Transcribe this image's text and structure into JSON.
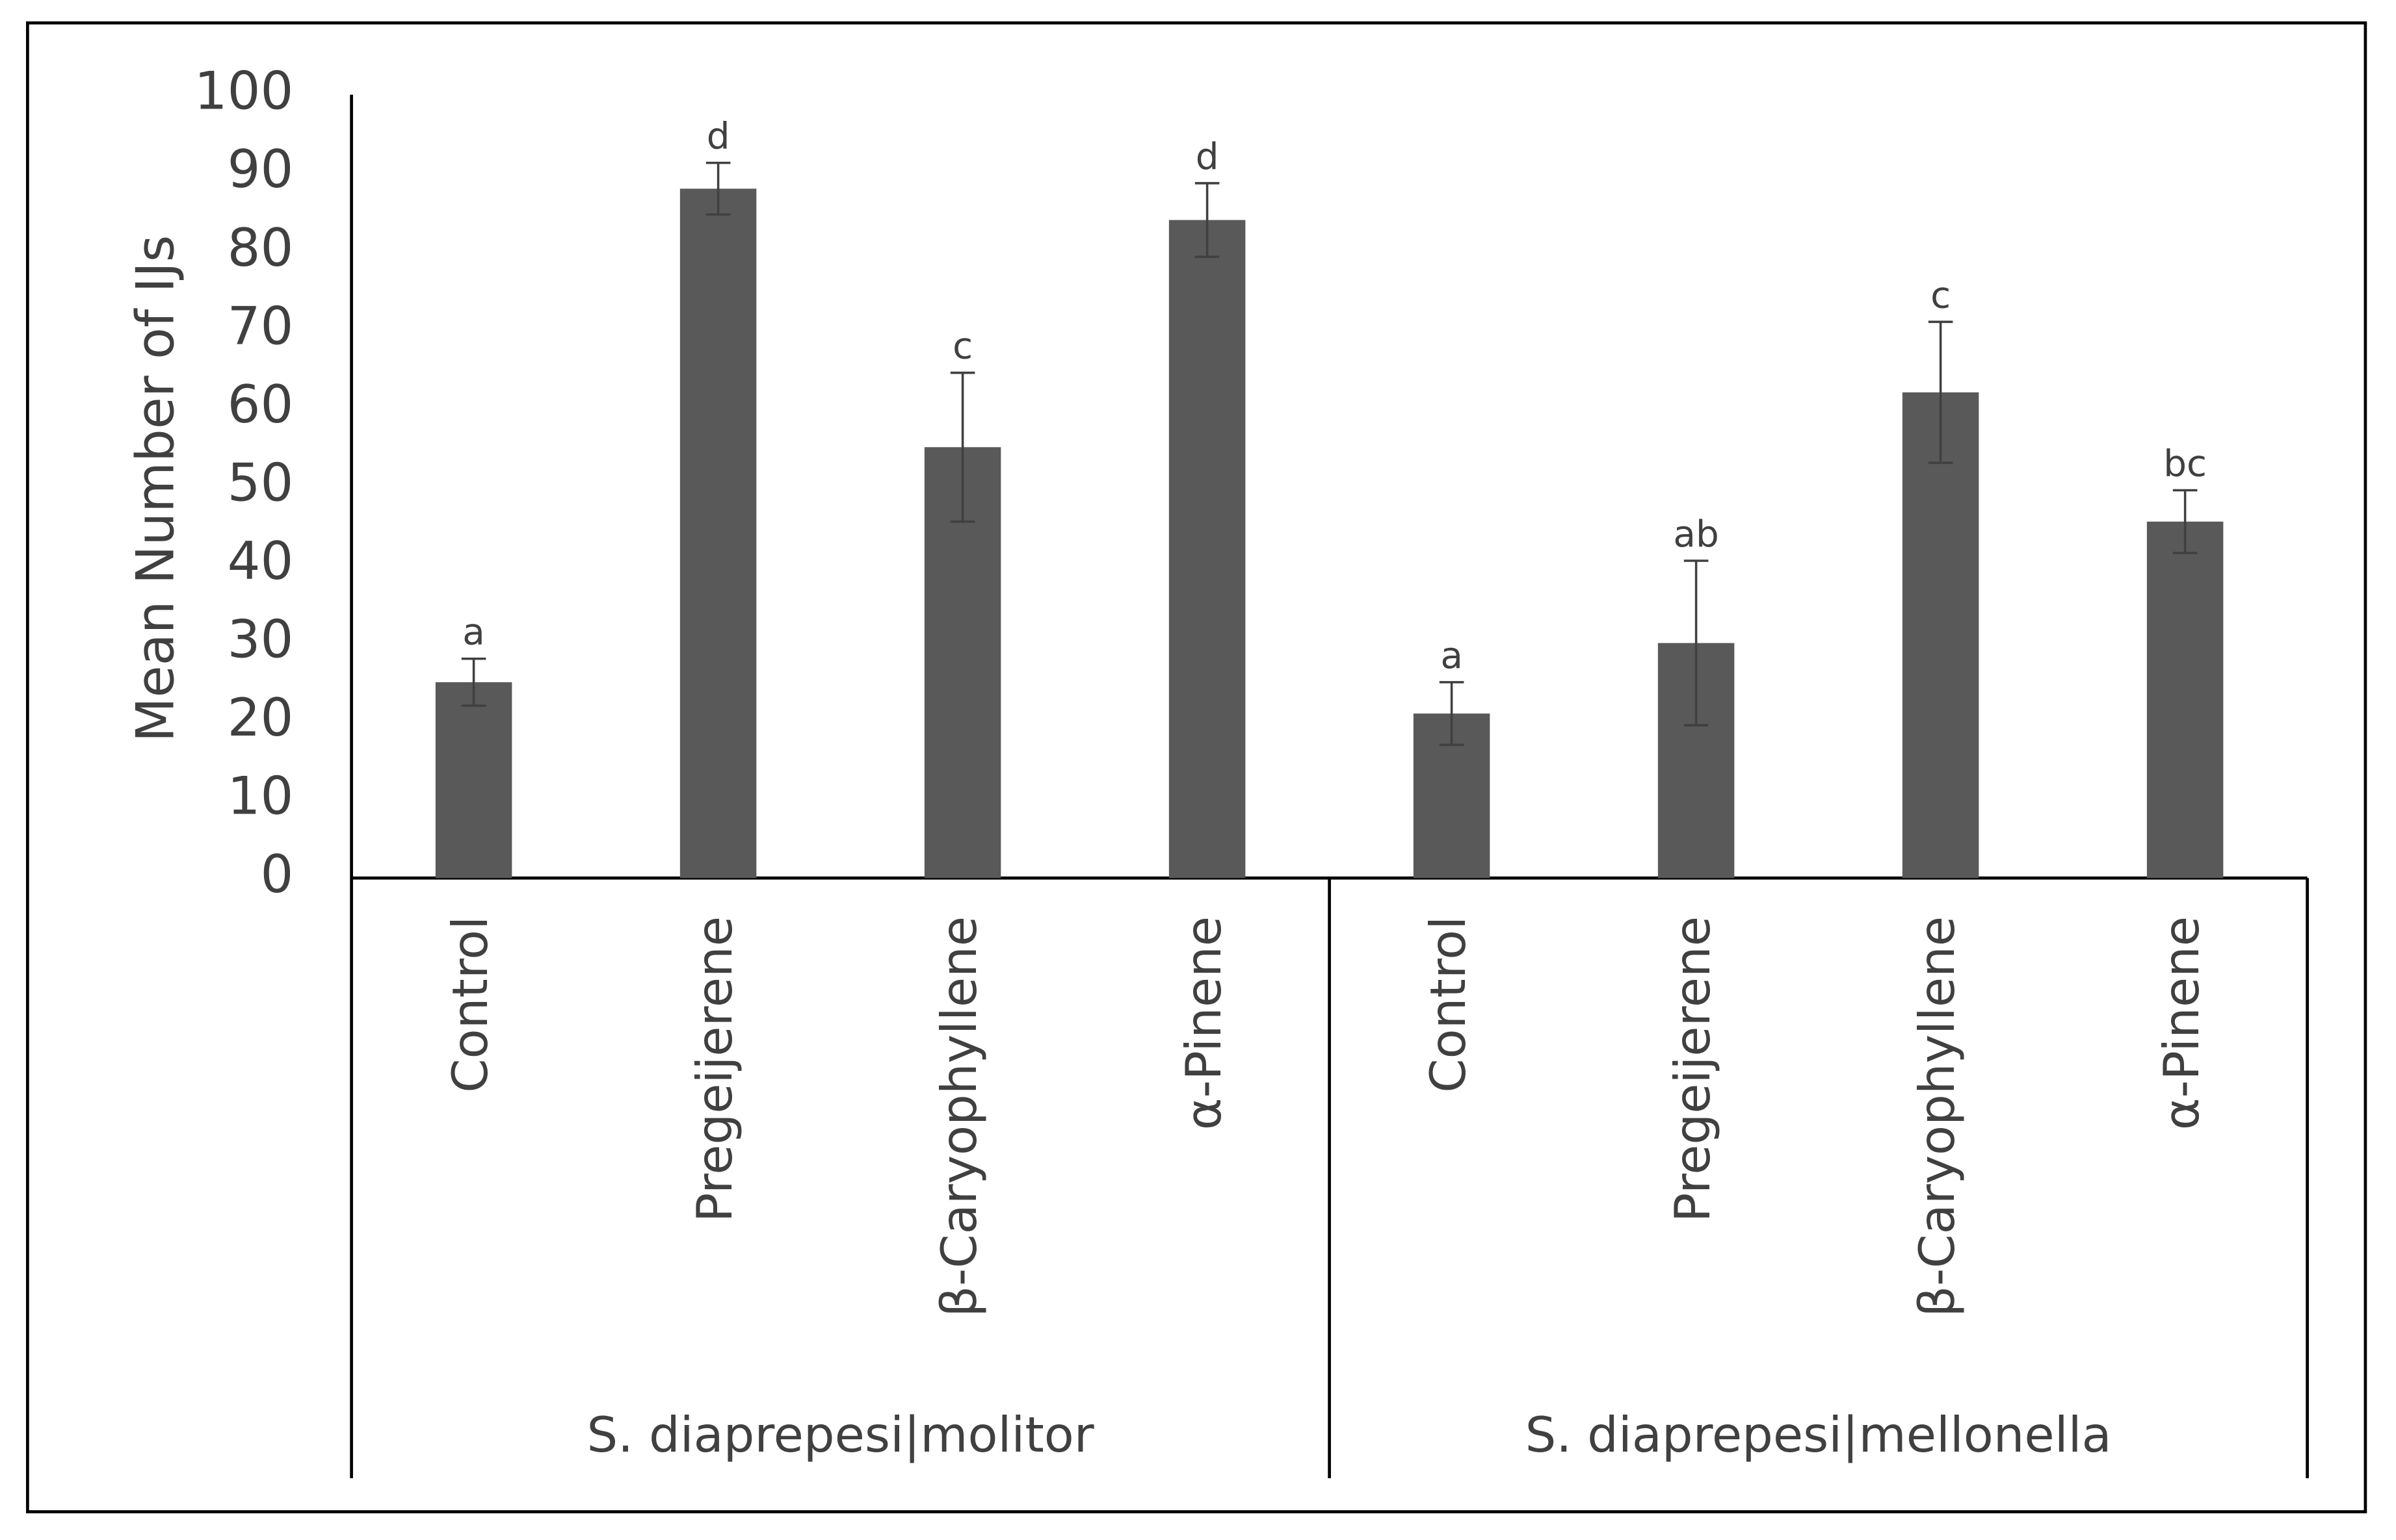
{
  "chart_data": {
    "type": "bar",
    "y_label": "Mean Number of IJs",
    "categories": [
      "Control",
      "Pregeijerene",
      "β-Caryophyllene",
      "α-Pinene",
      "Control",
      "Pregeijerene",
      "β-Caryophyllene",
      "α-Pinene"
    ],
    "groups": [
      "S. diaprepesi|molitor",
      "S. diaprepesi|mellonella"
    ],
    "series": [
      {
        "color": "#595959",
        "values": [
          25,
          88,
          55,
          84,
          21,
          30,
          62,
          45.5
        ],
        "errors": [
          3,
          3.3,
          9.5,
          4.7,
          4,
          10.5,
          9,
          4
        ],
        "annotations": [
          "a",
          "d",
          "c",
          "d",
          "a",
          "ab",
          "c",
          "bc"
        ]
      }
    ],
    "ylim": [
      0,
      100
    ],
    "yticks": [
      0,
      10,
      20,
      30,
      40,
      50,
      60,
      70,
      80,
      90,
      100
    ],
    "grid": false
  }
}
